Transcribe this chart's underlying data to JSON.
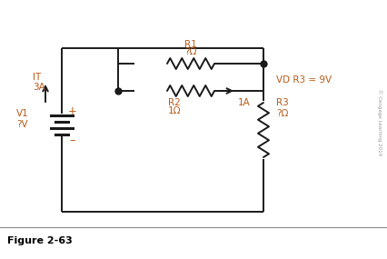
{
  "bg_color": "#ffffff",
  "line_color": "#1a1a1a",
  "text_color": "#b85c1a",
  "fig_label_color": "#000000",
  "copyright_color": "#999999",
  "title": "Figure 2-63",
  "copyright_text": "© Cengage Learning 2014",
  "labels": {
    "IT": "IT",
    "IT_val": "3A",
    "V1": "V1",
    "V1_val": "?V",
    "plus": "+",
    "minus": "–",
    "R1": "R1",
    "R1_val": "?Ω",
    "R2": "R2",
    "R2_val": "1Ω",
    "R2_current": "1A",
    "R3_label": "VD R3 = 9V",
    "R3": "R3",
    "R3_val": "?Ω"
  }
}
